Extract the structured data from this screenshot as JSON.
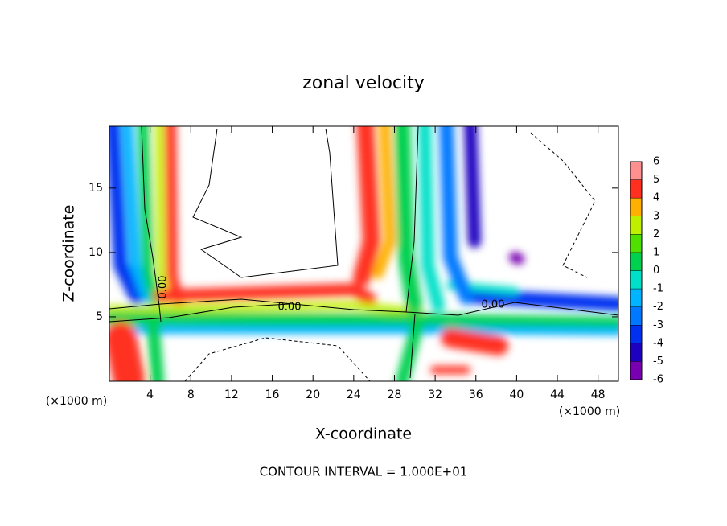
{
  "chart_data": {
    "type": "contour",
    "title": "zonal velocity",
    "x_label": "X-coordinate",
    "y_label": "Z-coordinate",
    "x_unit": "(×1000 m)",
    "y_unit": "(×1000 m)",
    "footnote": "CONTOUR INTERVAL = 1.000E+01",
    "contour_labels": [
      "0.00",
      "0.00",
      "0.00"
    ],
    "xlim": [
      0,
      50
    ],
    "xticks": [
      4,
      8,
      12,
      16,
      20,
      24,
      28,
      32,
      36,
      40,
      44,
      48
    ],
    "ylim": [
      0,
      19.8
    ],
    "yticks": [
      5,
      10,
      15
    ],
    "colorbar": {
      "levels": [
        -6,
        -5,
        -4,
        -3,
        -2,
        -1,
        0,
        1,
        2,
        3,
        4,
        5,
        6
      ],
      "colors": [
        "#7800b0",
        "#1e00c0",
        "#0030f0",
        "#0078ff",
        "#00b4ff",
        "#00e0c8",
        "#00d050",
        "#50e000",
        "#c0f000",
        "#ffb000",
        "#ff3020",
        "#ff9090"
      ]
    }
  }
}
